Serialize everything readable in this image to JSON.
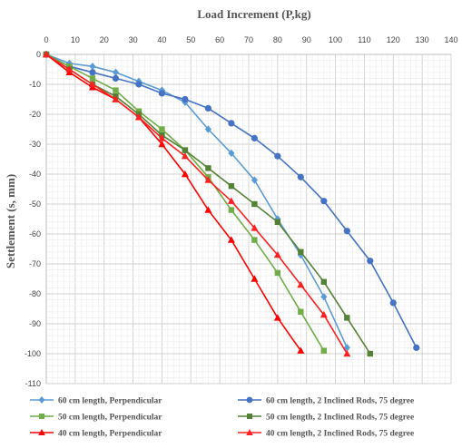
{
  "chart_data": {
    "type": "line",
    "title": "",
    "xlabel": "Load Increment (P,kg)",
    "ylabel": "Settlement (s, mm)",
    "xlim": [
      0,
      140
    ],
    "ylim": [
      -110,
      0
    ],
    "x_ticks": [
      0,
      10,
      20,
      30,
      40,
      50,
      60,
      70,
      80,
      90,
      100,
      110,
      120,
      130,
      140
    ],
    "y_ticks": [
      0,
      -10,
      -20,
      -30,
      -40,
      -50,
      -60,
      -70,
      -80,
      -90,
      -100,
      -110
    ],
    "x_axis_position": "top",
    "grid": true,
    "legend_position": "bottom",
    "series": [
      {
        "name": "60 cm length, Perpendicular",
        "color": "#5b9bd5",
        "marker": "diamond",
        "x": [
          0,
          8,
          16,
          24,
          32,
          40,
          48,
          56,
          64,
          72,
          80,
          88,
          96,
          104
        ],
        "y": [
          0,
          -3,
          -4,
          -6,
          -9,
          -12,
          -16,
          -25,
          -33,
          -42,
          -55,
          -67,
          -81,
          -98
        ]
      },
      {
        "name": "60 cm length, 2 Inclined Rods, 75 degree",
        "color": "#4472c4",
        "marker": "circle",
        "x": [
          0,
          8,
          16,
          24,
          32,
          40,
          48,
          56,
          64,
          72,
          80,
          88,
          96,
          104,
          112,
          120,
          128
        ],
        "y": [
          0,
          -4,
          -6,
          -8,
          -10,
          -13,
          -15,
          -18,
          -23,
          -28,
          -34,
          -41,
          -49,
          -59,
          -69,
          -83,
          -98
        ]
      },
      {
        "name": "50 cm length, Perpendicular",
        "color": "#70ad47",
        "marker": "square",
        "x": [
          0,
          8,
          16,
          24,
          32,
          40,
          48,
          56,
          64,
          72,
          80,
          88,
          96
        ],
        "y": [
          0,
          -4,
          -8,
          -12,
          -19,
          -25,
          -32,
          -41,
          -52,
          -62,
          -73,
          -86,
          -99
        ]
      },
      {
        "name": "50 cm length, 2 Inclined Rods, 75 degree",
        "color": "#548235",
        "marker": "square",
        "x": [
          0,
          8,
          16,
          24,
          32,
          40,
          48,
          56,
          64,
          72,
          80,
          88,
          96,
          104,
          112
        ],
        "y": [
          0,
          -5,
          -10,
          -14,
          -20,
          -27,
          -32,
          -38,
          -44,
          -50,
          -56,
          -66,
          -76,
          -88,
          -100
        ]
      },
      {
        "name": "40 cm length, Perpendicular",
        "color": "#ff0000",
        "marker": "triangle",
        "x": [
          0,
          8,
          16,
          24,
          32,
          40,
          48,
          56,
          64,
          72,
          80,
          88
        ],
        "y": [
          0,
          -6,
          -11,
          -15,
          -21,
          -30,
          -40,
          -52,
          -62,
          -75,
          -88,
          -99
        ]
      },
      {
        "name": "40 cm length, 2 Inclined Rods, 75 degree",
        "color": "#ff2020",
        "marker": "triangle",
        "x": [
          0,
          8,
          16,
          24,
          32,
          40,
          48,
          56,
          64,
          72,
          80,
          88,
          96,
          104
        ],
        "y": [
          0,
          -5,
          -10,
          -15,
          -21,
          -28,
          -34,
          -42,
          -49,
          -58,
          -67,
          -77,
          -87,
          -100
        ]
      }
    ],
    "legend_columns": [
      [
        0,
        2,
        4
      ],
      [
        1,
        3,
        5
      ]
    ]
  }
}
